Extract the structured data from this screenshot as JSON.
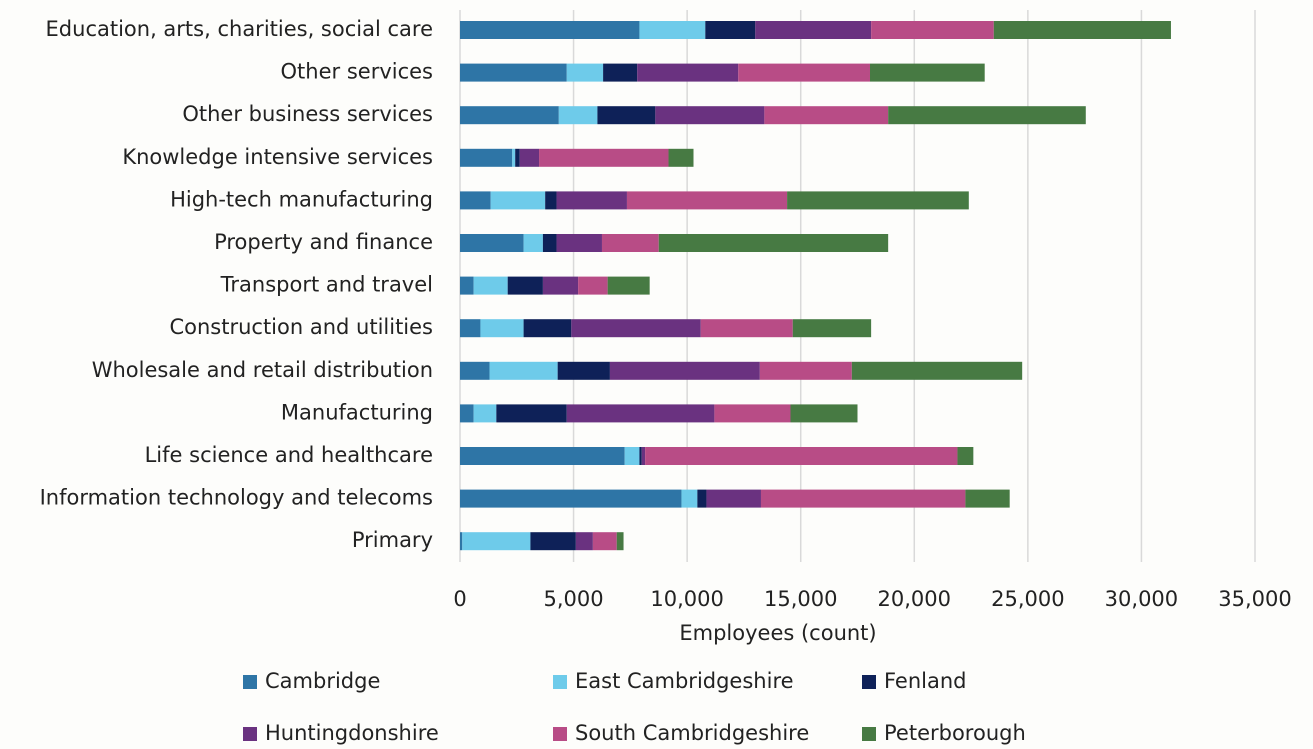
{
  "chart_data": {
    "type": "stacked-bar-horizontal",
    "xlabel": "Employees (count)",
    "categories": [
      "Education, arts, charities, social care",
      "Other services",
      "Other business services",
      "Knowledge intensive services",
      "High-tech manufacturing",
      "Property and finance",
      "Transport and travel",
      "Construction and utilities",
      "Wholesale and retail distribution",
      "Manufacturing",
      "Life science and healthcare",
      "Information technology and telecoms",
      "Primary"
    ],
    "series": [
      {
        "name": "Cambridge",
        "color": "#2e75a6",
        "values": [
          7900,
          4700,
          4350,
          2300,
          1350,
          2800,
          600,
          900,
          1300,
          600,
          7250,
          9750,
          100
        ]
      },
      {
        "name": "East Cambridgeshire",
        "color": "#6ecbea",
        "values": [
          2900,
          1600,
          1700,
          130,
          2400,
          850,
          1500,
          1900,
          3000,
          1000,
          650,
          700,
          3000
        ]
      },
      {
        "name": "Fenland",
        "color": "#0e2158",
        "values": [
          2200,
          1500,
          2550,
          200,
          500,
          600,
          1550,
          2100,
          2300,
          3100,
          100,
          400,
          2000
        ]
      },
      {
        "name": "Huntingdonshire",
        "color": "#6a3280",
        "values": [
          5100,
          4450,
          4800,
          850,
          3100,
          2000,
          1550,
          5700,
          6600,
          6500,
          150,
          2400,
          750
        ]
      },
      {
        "name": "South Cambridgeshire",
        "color": "#b84c86",
        "values": [
          5400,
          5800,
          5450,
          5700,
          7050,
          2500,
          1300,
          4050,
          4050,
          3350,
          13750,
          9000,
          1050
        ]
      },
      {
        "name": "Peterborough",
        "color": "#477a43",
        "values": [
          7800,
          5050,
          8700,
          1100,
          8000,
          10100,
          1850,
          3450,
          7500,
          2950,
          700,
          1950,
          300
        ]
      }
    ],
    "xlim": [
      0,
      35000
    ],
    "xticks": [
      0,
      {
        "value": 5000,
        "label": "5,000"
      },
      {
        "value": 10000,
        "label": "10,000"
      },
      {
        "value": 15000,
        "label": "15,000"
      },
      {
        "value": 20000,
        "label": "20,000"
      },
      {
        "value": 25000,
        "label": "25,000"
      },
      {
        "value": 30000,
        "label": "30,000"
      },
      {
        "value": 35000,
        "label": "35,000"
      }
    ],
    "grid": true,
    "legend": "bottom"
  }
}
